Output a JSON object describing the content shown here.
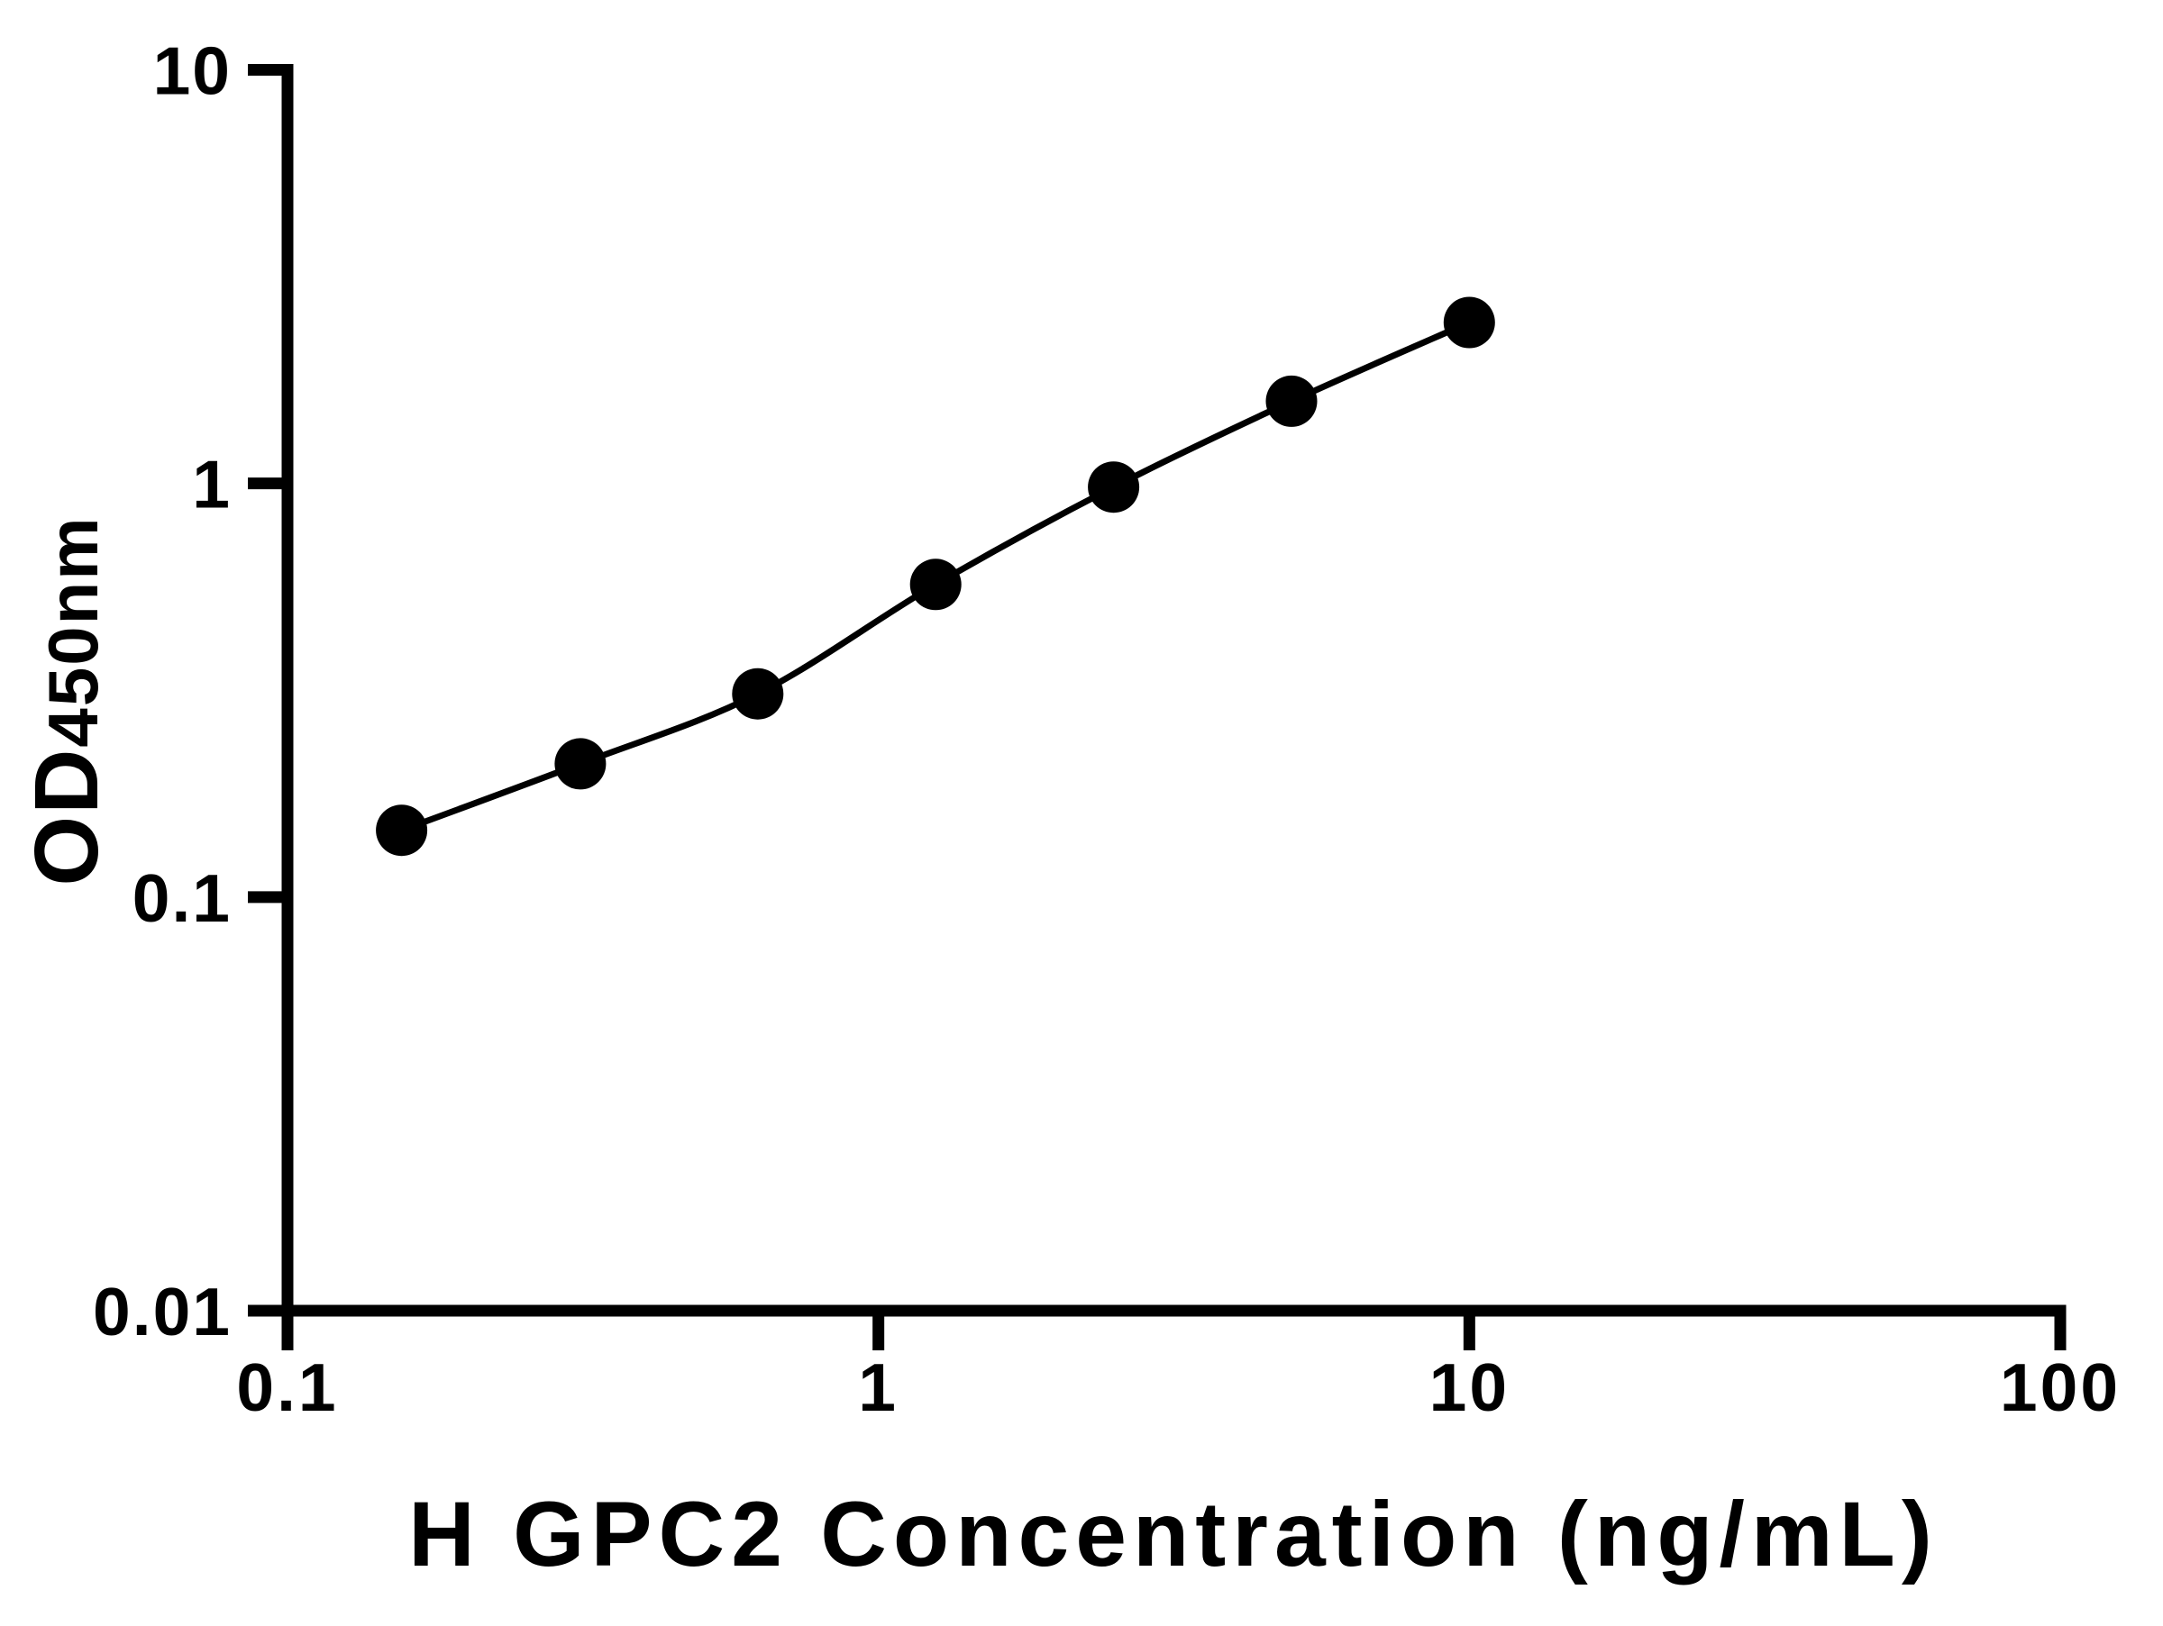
{
  "chart_data": {
    "type": "line",
    "title": "",
    "xlabel": "H GPC2 Concentration (ng/mL)",
    "ylabel": "OD450nm",
    "ylabel_main": "OD",
    "ylabel_sub": "450nm",
    "x_scale": "log",
    "y_scale": "log",
    "xlim": [
      0.1,
      100
    ],
    "ylim": [
      0.01,
      10
    ],
    "grid": false,
    "legend": "none",
    "marker": "filled-circle",
    "colors": {
      "curve": "#000000",
      "marker": "#000000",
      "axis": "#000000",
      "background": "#ffffff"
    },
    "x_ticks": [
      {
        "value": 0.1,
        "label": "0.1"
      },
      {
        "value": 1,
        "label": "1"
      },
      {
        "value": 10,
        "label": "10"
      },
      {
        "value": 100,
        "label": "100"
      }
    ],
    "y_ticks": [
      {
        "value": 0.01,
        "label": "0.01"
      },
      {
        "value": 0.1,
        "label": "0.1"
      },
      {
        "value": 1,
        "label": "1"
      },
      {
        "value": 10,
        "label": "10"
      }
    ],
    "series": [
      {
        "points": [
          {
            "x": 0.156,
            "y": 0.145
          },
          {
            "x": 0.313,
            "y": 0.21
          },
          {
            "x": 0.625,
            "y": 0.31
          },
          {
            "x": 1.25,
            "y": 0.57
          },
          {
            "x": 2.5,
            "y": 0.98
          },
          {
            "x": 5,
            "y": 1.58
          },
          {
            "x": 10,
            "y": 2.45
          }
        ]
      }
    ]
  }
}
